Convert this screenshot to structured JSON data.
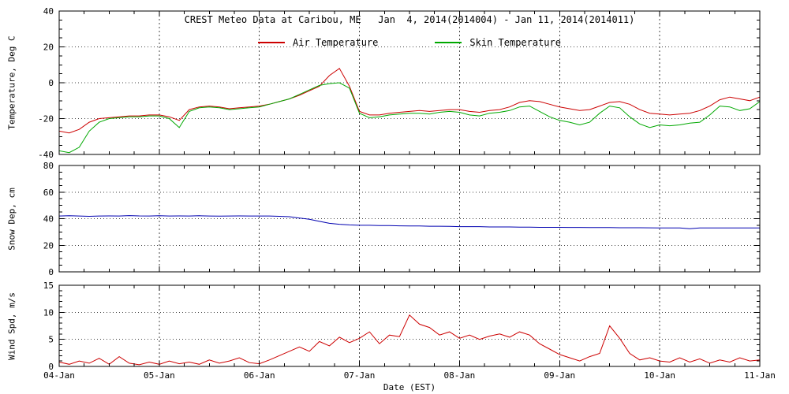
{
  "title": "CREST Meteo Data at Caribou, ME   Jan  4, 2014(2014004) - Jan 11, 2014(2014011)",
  "xlabel": "Date (EST)",
  "x_tick_labels": [
    "04-Jan",
    "05-Jan",
    "06-Jan",
    "07-Jan",
    "08-Jan",
    "09-Jan",
    "10-Jan",
    "11-Jan"
  ],
  "xlim_days": [
    0,
    7
  ],
  "colors": {
    "air_temperature": "#cc0000",
    "skin_temperature": "#00a800",
    "snow_depth": "#0000b0",
    "wind_speed": "#cc0000",
    "axis": "#000000",
    "background": "#ffffff"
  },
  "legend": [
    {
      "label": "Air Temperature",
      "color": "#cc0000"
    },
    {
      "label": "Skin Temperature",
      "color": "#00a800"
    }
  ],
  "chart_data": [
    {
      "type": "line",
      "ylabel": "Temperature, Deg C",
      "ylim": [
        -40,
        40
      ],
      "yticks": [
        -40,
        -20,
        0,
        20,
        40
      ],
      "ytick_labels": [
        "-40",
        "-20",
        "0",
        "20",
        "40"
      ],
      "x_unit": "days since 2014-01-04 00:00 EST",
      "x_start": 0,
      "x_step": 0.1,
      "series": [
        {
          "name": "Air Temperature",
          "color": "#cc0000",
          "values": [
            -27,
            -28,
            -26,
            -22,
            -20,
            -19.5,
            -19,
            -18.5,
            -18.5,
            -18,
            -18,
            -19,
            -21,
            -15,
            -13.5,
            -13,
            -13.5,
            -14.5,
            -14,
            -13.5,
            -13,
            -12,
            -10.5,
            -9,
            -7,
            -4.5,
            -2,
            4,
            8,
            -2,
            -16,
            -18,
            -18,
            -17,
            -16.5,
            -16,
            -15.5,
            -16,
            -15.5,
            -15,
            -15,
            -16,
            -16.5,
            -15.5,
            -15,
            -13.5,
            -11,
            -10,
            -10.5,
            -12,
            -13.5,
            -14.5,
            -15.5,
            -15,
            -13,
            -11,
            -10.5,
            -12,
            -15,
            -17,
            -17.5,
            -18,
            -17.5,
            -17,
            -15.5,
            -13,
            -9.5,
            -8,
            -9,
            -10,
            -8
          ]
        },
        {
          "name": "Skin Temperature",
          "color": "#00a800",
          "values": [
            -38,
            -39,
            -36,
            -27,
            -22,
            -20,
            -19.5,
            -19,
            -19,
            -18.5,
            -18.5,
            -20,
            -25,
            -16,
            -14,
            -13.5,
            -14,
            -15,
            -14.5,
            -14,
            -13.5,
            -12,
            -10.5,
            -9,
            -6.5,
            -4,
            -1.5,
            -0.5,
            0,
            -3,
            -17,
            -19.5,
            -19,
            -18,
            -17.5,
            -17,
            -17,
            -17.5,
            -16.5,
            -16,
            -16.5,
            -18,
            -18.5,
            -17,
            -16.5,
            -15.5,
            -13.5,
            -13,
            -16,
            -19,
            -21,
            -22,
            -23.5,
            -22,
            -17,
            -13,
            -14,
            -19,
            -23,
            -25,
            -23.5,
            -24,
            -23.5,
            -22.5,
            -22,
            -18,
            -13,
            -13.5,
            -15.5,
            -14.5,
            -10.5
          ]
        }
      ]
    },
    {
      "type": "line",
      "ylabel": "Snow Dep, cm",
      "ylim": [
        0,
        80
      ],
      "yticks": [
        0,
        20,
        40,
        60,
        80
      ],
      "ytick_labels": [
        "0",
        "20",
        "40",
        "60",
        "80"
      ],
      "x_unit": "days since 2014-01-04 00:00 EST",
      "x_start": 0,
      "x_step": 0.1,
      "series": [
        {
          "name": "Snow Depth",
          "color": "#0000b0",
          "values": [
            42,
            42.2,
            42,
            41.8,
            42,
            42.1,
            42,
            42.3,
            42.1,
            42,
            42.2,
            42,
            42.1,
            42,
            42.2,
            42,
            41.9,
            42,
            42.1,
            42,
            42,
            42,
            41.8,
            41.5,
            40.5,
            39.5,
            38,
            36.5,
            35.8,
            35.3,
            35,
            35,
            34.8,
            34.8,
            34.6,
            34.5,
            34.5,
            34.3,
            34.3,
            34.2,
            34,
            34,
            34,
            33.8,
            33.8,
            33.8,
            33.6,
            33.6,
            33.5,
            33.5,
            33.5,
            33.4,
            33.4,
            33.3,
            33.3,
            33.3,
            33.2,
            33.2,
            33.2,
            33.1,
            33,
            33,
            33,
            32.5,
            33,
            33,
            33,
            33,
            33,
            33,
            33
          ]
        }
      ]
    },
    {
      "type": "line",
      "ylabel": "Wind Spd, m/s",
      "ylim": [
        0,
        15
      ],
      "yticks": [
        0,
        5,
        10,
        15
      ],
      "ytick_labels": [
        "0",
        "5",
        "10",
        "15"
      ],
      "x_unit": "days since 2014-01-04 00:00 EST",
      "x_start": 0,
      "x_step": 0.1,
      "series": [
        {
          "name": "Wind Speed",
          "color": "#cc0000",
          "values": [
            0.8,
            0.4,
            1.0,
            0.6,
            1.5,
            0.4,
            1.8,
            0.6,
            0.3,
            0.8,
            0.4,
            1.0,
            0.5,
            0.8,
            0.4,
            1.2,
            0.6,
            1.0,
            1.6,
            0.7,
            0.5,
            1.2,
            2.0,
            2.8,
            3.6,
            2.8,
            4.6,
            3.8,
            5.4,
            4.4,
            5.2,
            6.4,
            4.2,
            5.8,
            5.5,
            9.5,
            7.8,
            7.2,
            5.8,
            6.4,
            5.2,
            5.8,
            5.0,
            5.6,
            6.0,
            5.4,
            6.4,
            5.8,
            4.2,
            3.2,
            2.2,
            1.6,
            1.0,
            1.8,
            2.4,
            7.5,
            5.2,
            2.4,
            1.2,
            1.6,
            1.0,
            0.8,
            1.6,
            0.8,
            1.4,
            0.6,
            1.2,
            0.8,
            1.6,
            1.0,
            1.2
          ]
        }
      ]
    }
  ]
}
